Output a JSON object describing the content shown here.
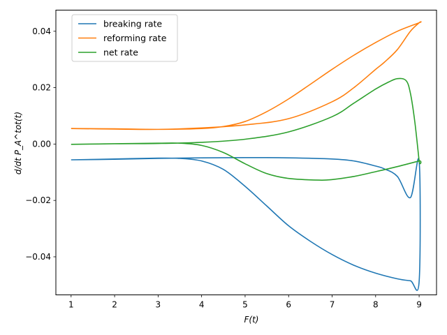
{
  "chart_data": {
    "type": "line",
    "xlabel": "F(t)",
    "ylabel": "d/dt P_A^tot(t)",
    "xlim": [
      0.65,
      9.4
    ],
    "ylim": [
      -0.0535,
      0.0475
    ],
    "xticks": [
      1,
      2,
      3,
      4,
      5,
      6,
      7,
      8,
      9
    ],
    "yticks": [
      -0.04,
      -0.02,
      0.0,
      0.02,
      0.04
    ],
    "ytick_labels": [
      "−0.04",
      "−0.02",
      "0.00",
      "0.02",
      "0.04"
    ],
    "grid": false,
    "legend_position": "top-left",
    "series": [
      {
        "name": "breaking rate",
        "color": "#1f77b4",
        "x": [
          1,
          2,
          3,
          3.5,
          4,
          4.5,
          5,
          5.5,
          6,
          6.5,
          7,
          7.5,
          8,
          8.5,
          8.8,
          9,
          9,
          8.8,
          8.5,
          8.2,
          8,
          7.5,
          7,
          6,
          5,
          4,
          3,
          2,
          1
        ],
        "y": [
          -0.0056,
          -0.0053,
          -0.005,
          -0.0051,
          -0.006,
          -0.009,
          -0.015,
          -0.022,
          -0.029,
          -0.0345,
          -0.0392,
          -0.043,
          -0.0458,
          -0.0478,
          -0.0485,
          -0.0488,
          -0.006,
          -0.019,
          -0.0115,
          -0.0088,
          -0.0078,
          -0.006,
          -0.0053,
          -0.0049,
          -0.0048,
          -0.0049,
          -0.0051,
          -0.0054,
          -0.0056
        ]
      },
      {
        "name": "reforming rate",
        "color": "#ff7f0e",
        "x": [
          1,
          2,
          3,
          4,
          4.5,
          5,
          5.5,
          6,
          6.5,
          7,
          7.5,
          8,
          8.5,
          9,
          9,
          8.8,
          8.5,
          8.2,
          8,
          7.5,
          7,
          6,
          5,
          4,
          3,
          2,
          1
        ],
        "y": [
          0.0055,
          0.0054,
          0.0052,
          0.0055,
          0.0062,
          0.008,
          0.0115,
          0.016,
          0.0212,
          0.0265,
          0.0315,
          0.036,
          0.04,
          0.043,
          0.043,
          0.04,
          0.0335,
          0.029,
          0.0265,
          0.02,
          0.015,
          0.009,
          0.0068,
          0.0057,
          0.0052,
          0.0053,
          0.0055
        ]
      },
      {
        "name": "net rate",
        "color": "#2ca02c",
        "x": [
          1,
          2,
          3,
          3.5,
          4,
          4.5,
          5,
          5.5,
          6,
          6.7,
          7,
          7.5,
          8,
          8.5,
          9,
          9,
          8.9,
          8.8,
          8.7,
          8.5,
          8.3,
          8,
          7.5,
          7,
          6,
          5,
          4,
          3,
          2,
          1
        ],
        "y": [
          -0.0001,
          0.0001,
          0.0003,
          0.0003,
          -0.0005,
          -0.003,
          -0.007,
          -0.0105,
          -0.0122,
          -0.0128,
          -0.0126,
          -0.0115,
          -0.0098,
          -0.008,
          -0.006,
          -0.006,
          0.008,
          0.018,
          0.0225,
          0.0232,
          0.022,
          0.0195,
          0.0145,
          0.0097,
          0.0043,
          0.0017,
          0.0006,
          0.0002,
          0.0001,
          -0.0001
        ]
      }
    ]
  }
}
